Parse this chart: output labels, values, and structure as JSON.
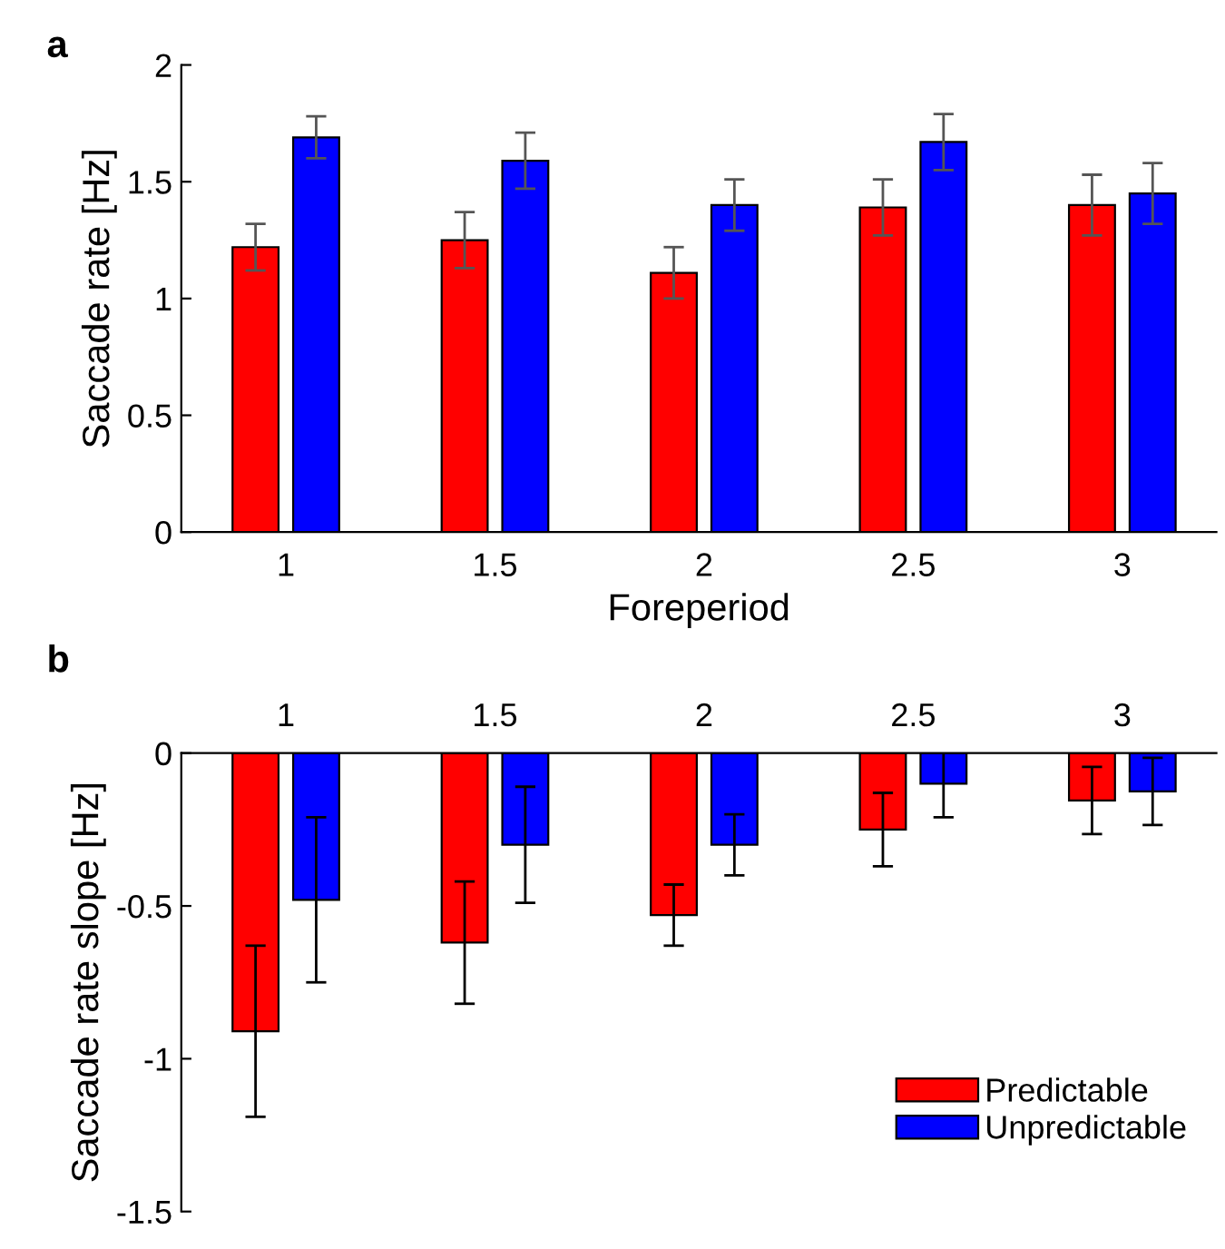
{
  "chart_data": [
    {
      "type": "bar",
      "title": "a",
      "xlabel": "Foreperiod",
      "ylabel": "Saccade rate [Hz]",
      "categories": [
        "1",
        "1.5",
        "2",
        "2.5",
        "3"
      ],
      "ylim": [
        0,
        2
      ],
      "yticks": [
        0,
        0.5,
        1,
        1.5,
        2
      ],
      "legend": false,
      "series": [
        {
          "color": "#ff0000",
          "values": [
            1.22,
            1.25,
            1.11,
            1.39,
            1.4
          ],
          "errors": [
            0.1,
            0.12,
            0.11,
            0.12,
            0.13
          ]
        },
        {
          "color": "#0000ff",
          "values": [
            1.69,
            1.59,
            1.4,
            1.67,
            1.45
          ],
          "errors": [
            0.09,
            0.12,
            0.11,
            0.12,
            0.13
          ]
        }
      ]
    },
    {
      "type": "bar",
      "title": "b",
      "ylabel": "Saccade rate slope [Hz]",
      "categories": [
        "1",
        "1.5",
        "2",
        "2.5",
        "3"
      ],
      "ylim": [
        -1.5,
        0
      ],
      "yticks": [
        -1.5,
        -1,
        -0.5,
        0
      ],
      "legend": "bottom right",
      "series": [
        {
          "name": "Predictable",
          "color": "#ff0000",
          "values": [
            -0.91,
            -0.62,
            -0.53,
            -0.25,
            -0.155
          ],
          "errors": [
            0.28,
            0.2,
            0.1,
            0.12,
            0.11
          ]
        },
        {
          "name": "Unpredictable",
          "color": "#0000ff",
          "values": [
            -0.48,
            -0.3,
            -0.3,
            -0.1,
            -0.125
          ],
          "errors": [
            0.27,
            0.19,
            0.1,
            0.11,
            0.11
          ]
        }
      ]
    }
  ]
}
